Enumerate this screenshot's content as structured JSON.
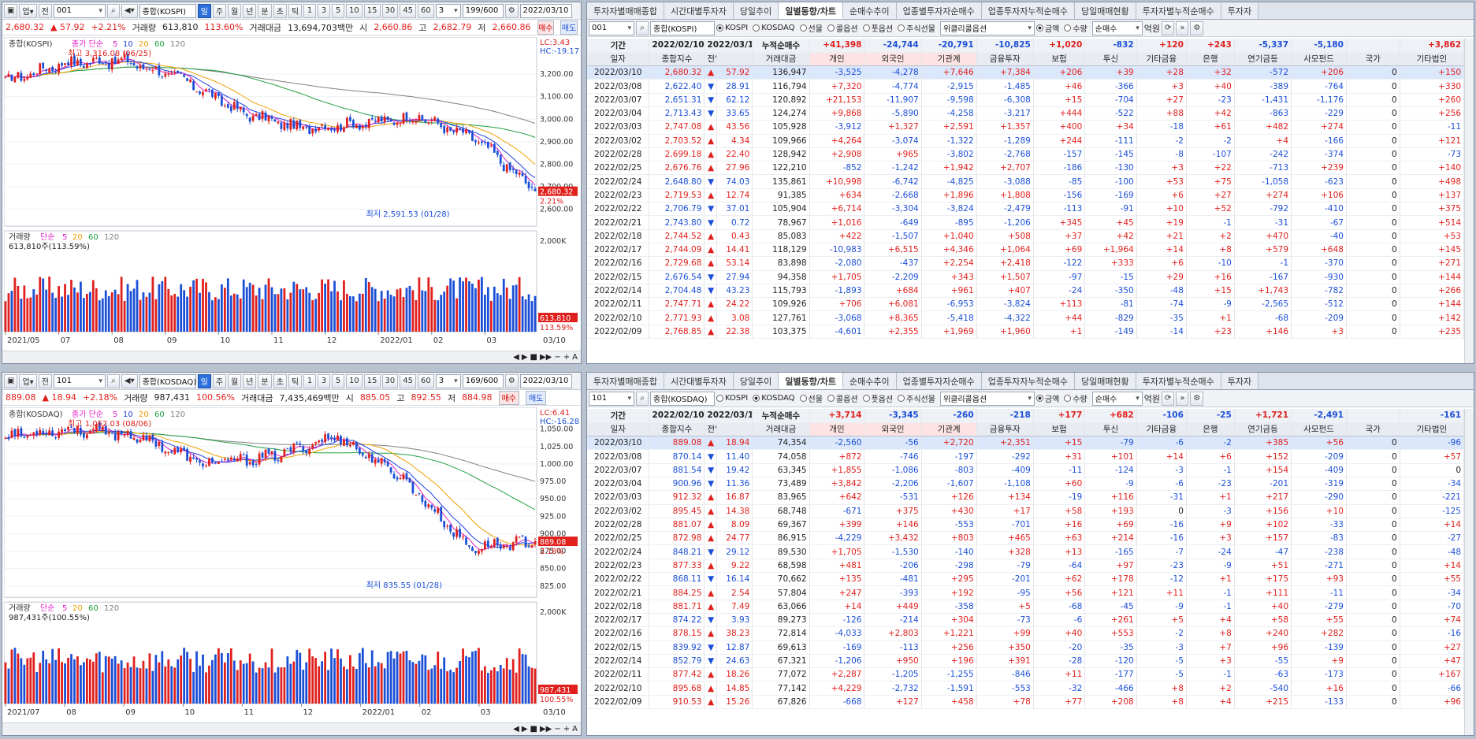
{
  "left_top": {
    "toolbar": {
      "code": "001",
      "name": "종합(KOSPI)",
      "periods": [
        "일",
        "주",
        "월",
        "년",
        "분",
        "초",
        "틱"
      ],
      "active_period": "일",
      "nums": [
        "1",
        "3",
        "5",
        "10",
        "15",
        "30",
        "45",
        "60"
      ],
      "num_sel": "3",
      "count": "199/600",
      "date": "2022/03/10"
    },
    "info": {
      "price": "2,680.32",
      "change": "57.92",
      "pct": "+2.21%",
      "vol_label": "거래량",
      "volume": "613,810",
      "vol_pct": "113.60%",
      "amt_label": "거래대금",
      "amount": "13,694,703백만",
      "open_label": "시",
      "open": "2,660.86",
      "high_label": "고",
      "high": "2,682.79",
      "low_label": "저",
      "low": "2,660.86",
      "buy": "매수",
      "sell": "매도"
    },
    "legend": {
      "name": "종합(KOSPI)",
      "ma_title": "종가 단순",
      "ma": [
        "5",
        "10",
        "20",
        "60",
        "120"
      ]
    },
    "lc": "LC:3.43",
    "hc": "HC:-19.17",
    "high_note": "최고 3,316.08 (06/25)",
    "low_note": "최저 2,591.53 (01/28)",
    "yaxis": [
      "3,200.00",
      "3,100.00",
      "3,000.00",
      "2,900.00",
      "2,800.00",
      "2,700.00",
      "2,600.00"
    ],
    "last_price": "2,680.32",
    "last_pct": "2.21%",
    "vol_legend": {
      "title": "거래량",
      "ma_title": "단순",
      "ma": [
        "5",
        "20",
        "60",
        "120"
      ],
      "value": "613,810주(113.59%)"
    },
    "vol_axis": "2,000K",
    "vol_last": "613,810",
    "vol_last_pct": "113.59%",
    "xaxis": [
      "2021/05",
      "07",
      "08",
      "09",
      "10",
      "11",
      "12",
      "2022/01",
      "02",
      "03"
    ],
    "xend": "03/10"
  },
  "left_bottom": {
    "toolbar": {
      "code": "101",
      "name": "종합(KOSDAQ)",
      "periods": [
        "일",
        "주",
        "월",
        "년",
        "분",
        "초",
        "틱"
      ],
      "active_period": "일",
      "nums": [
        "1",
        "3",
        "5",
        "10",
        "15",
        "30",
        "45",
        "60"
      ],
      "num_sel": "3",
      "count": "169/600",
      "date": "2022/03/10"
    },
    "info": {
      "price": "889.08",
      "change": "18.94",
      "pct": "+2.18%",
      "vol_label": "거래량",
      "volume": "987,431",
      "vol_pct": "100.56%",
      "amt_label": "거래대금",
      "amount": "7,435,469백만",
      "open_label": "시",
      "open": "885.05",
      "high_label": "고",
      "high": "892.55",
      "low_label": "저",
      "low": "884.98",
      "buy": "매수",
      "sell": "매도"
    },
    "legend": {
      "name": "종합(KOSDAQ)",
      "ma_title": "종가 단순",
      "ma": [
        "5",
        "10",
        "20",
        "60",
        "120"
      ]
    },
    "lc": "LC:6.41",
    "hc": "HC:-16.28",
    "high_note": "최고 1,062.03 (08/06)",
    "low_note": "최저 835.55 (01/28)",
    "yaxis": [
      "1,050.00",
      "1,025.00",
      "1,000.00",
      "975.00",
      "950.00",
      "925.00",
      "900.00",
      "875.00",
      "850.00",
      "825.00"
    ],
    "last_price": "889.08",
    "last_pct": "2.18%",
    "vol_legend": {
      "title": "거래량",
      "ma_title": "단순",
      "ma": [
        "5",
        "20",
        "60",
        "120"
      ],
      "value": "987,431주(100.55%)"
    },
    "vol_axis": "2,000K",
    "vol_last": "987,431",
    "vol_last_pct": "100.55%",
    "xaxis": [
      "2021/07",
      "08",
      "09",
      "10",
      "11",
      "12",
      "2022/01",
      "02",
      "03"
    ],
    "xend": "03/10"
  },
  "tabs": [
    "투자자별매매종합",
    "시간대별투자자",
    "당일추이",
    "일별동향/차트",
    "순매수추이",
    "업종별투자자순매수",
    "업종투자자누적순매수",
    "당일매매현황",
    "투자자별누적순매수",
    "투자자"
  ],
  "active_tab": "일별동향/차트",
  "right_top": {
    "code": "001",
    "name": "종합(KOSPI)",
    "date": "2022/03/10",
    "markets": [
      "KOSPI",
      "KOSDAQ",
      "선물",
      "콜옵션",
      "풋옵션",
      "주식선물"
    ],
    "market_sel": "KOSPI",
    "extra": "위클리콜옵션",
    "units": [
      "금액",
      "수량"
    ],
    "unit_sel": "금액",
    "net": "순매수",
    "won": "억원",
    "period_label": "기간",
    "from": "2022/02/10",
    "to": "2022/03/10",
    "cum_label": "누적순매수",
    "sums": [
      "+41,398",
      "-24,744",
      "-20,791",
      "-10,825",
      "+1,020",
      "-832",
      "+120",
      "+243",
      "-5,337",
      "-5,180",
      "",
      "+3,862"
    ],
    "headers": [
      "일자",
      "종합지수",
      "전일비",
      "",
      "거래대금",
      "개인",
      "외국인",
      "기관계",
      "금융투자",
      "보험",
      "투신",
      "기타금융",
      "은행",
      "연기금등",
      "사모펀드",
      "국가",
      "기타법인"
    ],
    "rows": [
      [
        "2022/03/10",
        "2,680.32",
        "▲",
        "57.92",
        "136,947",
        "-3,525",
        "-4,278",
        "+7,646",
        "+7,384",
        "+206",
        "+39",
        "+28",
        "+32",
        "-572",
        "+206",
        "0",
        "+150"
      ],
      [
        "2022/03/08",
        "2,622.40",
        "▼",
        "28.91",
        "116,794",
        "+7,320",
        "-4,774",
        "-2,915",
        "-1,485",
        "+46",
        "-366",
        "+3",
        "+40",
        "-389",
        "-764",
        "0",
        "+330"
      ],
      [
        "2022/03/07",
        "2,651.31",
        "▼",
        "62.12",
        "120,892",
        "+21,153",
        "-11,907",
        "-9,598",
        "-6,308",
        "+15",
        "-704",
        "+27",
        "-23",
        "-1,431",
        "-1,176",
        "0",
        "+260"
      ],
      [
        "2022/03/04",
        "2,713.43",
        "▼",
        "33.65",
        "124,274",
        "+9,868",
        "-5,890",
        "-4,258",
        "-3,217",
        "+444",
        "-522",
        "+88",
        "+42",
        "-863",
        "-229",
        "0",
        "+256"
      ],
      [
        "2022/03/03",
        "2,747.08",
        "▲",
        "43.56",
        "105,928",
        "-3,912",
        "+1,327",
        "+2,591",
        "+1,357",
        "+400",
        "+34",
        "-18",
        "+61",
        "+482",
        "+274",
        "0",
        "-11"
      ],
      [
        "2022/03/02",
        "2,703.52",
        "▲",
        "4.34",
        "109,966",
        "+4,264",
        "-3,074",
        "-1,322",
        "-1,289",
        "+244",
        "-111",
        "-2",
        "-2",
        "+4",
        "-166",
        "0",
        "+121"
      ],
      [
        "2022/02/28",
        "2,699.18",
        "▲",
        "22.40",
        "128,942",
        "+2,908",
        "+965",
        "-3,802",
        "-2,768",
        "-157",
        "-145",
        "-8",
        "-107",
        "-242",
        "-374",
        "0",
        "-73"
      ],
      [
        "2022/02/25",
        "2,676.76",
        "▲",
        "27.96",
        "122,210",
        "-852",
        "-1,242",
        "+1,942",
        "+2,707",
        "-186",
        "-130",
        "+3",
        "+22",
        "-713",
        "+239",
        "0",
        "+140"
      ],
      [
        "2022/02/24",
        "2,648.80",
        "▼",
        "74.03",
        "135,861",
        "+10,998",
        "-6,742",
        "-4,825",
        "-3,088",
        "-85",
        "-100",
        "+53",
        "+75",
        "-1,058",
        "-623",
        "0",
        "+498"
      ],
      [
        "2022/02/23",
        "2,719.53",
        "▲",
        "12.74",
        "91,385",
        "+634",
        "-2,668",
        "+1,896",
        "+1,808",
        "-156",
        "-169",
        "+6",
        "+27",
        "+274",
        "+106",
        "0",
        "+137"
      ],
      [
        "2022/02/22",
        "2,706.79",
        "▼",
        "37.01",
        "105,904",
        "+6,714",
        "-3,304",
        "-3,824",
        "-2,479",
        "-113",
        "-91",
        "+10",
        "+52",
        "-792",
        "-410",
        "0",
        "+375"
      ],
      [
        "2022/02/21",
        "2,743.80",
        "▼",
        "0.72",
        "78,967",
        "+1,016",
        "-649",
        "-895",
        "-1,206",
        "+345",
        "+45",
        "+19",
        "-1",
        "-31",
        "-67",
        "0",
        "+514"
      ],
      [
        "2022/02/18",
        "2,744.52",
        "▲",
        "0.43",
        "85,083",
        "+422",
        "-1,507",
        "+1,040",
        "+508",
        "+37",
        "+42",
        "+21",
        "+2",
        "+470",
        "-40",
        "0",
        "+53"
      ],
      [
        "2022/02/17",
        "2,744.09",
        "▲",
        "14.41",
        "118,129",
        "-10,983",
        "+6,515",
        "+4,346",
        "+1,064",
        "+69",
        "+1,964",
        "+14",
        "+8",
        "+579",
        "+648",
        "0",
        "+145"
      ],
      [
        "2022/02/16",
        "2,729.68",
        "▲",
        "53.14",
        "83,898",
        "-2,080",
        "-437",
        "+2,254",
        "+2,418",
        "-122",
        "+333",
        "+6",
        "-10",
        "-1",
        "-370",
        "0",
        "+271"
      ],
      [
        "2022/02/15",
        "2,676.54",
        "▼",
        "27.94",
        "94,358",
        "+1,705",
        "-2,209",
        "+343",
        "+1,507",
        "-97",
        "-15",
        "+29",
        "+16",
        "-167",
        "-930",
        "0",
        "+144"
      ],
      [
        "2022/02/14",
        "2,704.48",
        "▼",
        "43.23",
        "115,793",
        "-1,893",
        "+684",
        "+961",
        "+407",
        "-24",
        "-350",
        "-48",
        "+15",
        "+1,743",
        "-782",
        "0",
        "+266"
      ],
      [
        "2022/02/11",
        "2,747.71",
        "▲",
        "24.22",
        "109,926",
        "+706",
        "+6,081",
        "-6,953",
        "-3,824",
        "+113",
        "-81",
        "-74",
        "-9",
        "-2,565",
        "-512",
        "0",
        "+144"
      ],
      [
        "2022/02/10",
        "2,771.93",
        "▲",
        "3.08",
        "127,761",
        "-3,068",
        "+8,365",
        "-5,418",
        "-4,322",
        "+44",
        "-829",
        "-35",
        "+1",
        "-68",
        "-209",
        "0",
        "+142"
      ],
      [
        "2022/02/09",
        "2,768.85",
        "▲",
        "22.38",
        "103,375",
        "-4,601",
        "+2,355",
        "+1,969",
        "+1,960",
        "+1",
        "-149",
        "-14",
        "+23",
        "+146",
        "+3",
        "0",
        "+235"
      ]
    ]
  },
  "right_bottom": {
    "code": "101",
    "name": "종합(KOSDAQ)",
    "date": "2022/03/10",
    "markets": [
      "KOSPI",
      "KOSDAQ",
      "선물",
      "콜옵션",
      "풋옵션",
      "주식선물"
    ],
    "market_sel": "KOSDAQ",
    "extra": "위클리콜옵션",
    "units": [
      "금액",
      "수량"
    ],
    "unit_sel": "금액",
    "net": "순매수",
    "won": "억원",
    "period_label": "기간",
    "from": "2022/02/10",
    "to": "2022/03/10",
    "cum_label": "누적순매수",
    "sums": [
      "+3,714",
      "-3,345",
      "-260",
      "-218",
      "+177",
      "+682",
      "-106",
      "-25",
      "+1,721",
      "-2,491",
      "",
      "-161"
    ],
    "headers": [
      "일자",
      "종합지수",
      "전일비",
      "",
      "거래대금",
      "개인",
      "외국인",
      "기관계",
      "금융투자",
      "보험",
      "투신",
      "기타금융",
      "은행",
      "연기금등",
      "사모펀드",
      "국가",
      "기타법인"
    ],
    "rows": [
      [
        "2022/03/10",
        "889.08",
        "▲",
        "18.94",
        "74,354",
        "-2,560",
        "-56",
        "+2,720",
        "+2,351",
        "+15",
        "-79",
        "-6",
        "-2",
        "+385",
        "+56",
        "0",
        "-96"
      ],
      [
        "2022/03/08",
        "870.14",
        "▼",
        "11.40",
        "74,058",
        "+872",
        "-746",
        "-197",
        "-292",
        "+31",
        "+101",
        "+14",
        "+6",
        "+152",
        "-209",
        "0",
        "+57"
      ],
      [
        "2022/03/07",
        "881.54",
        "▼",
        "19.42",
        "63,345",
        "+1,855",
        "-1,086",
        "-803",
        "-409",
        "-11",
        "-124",
        "-3",
        "-1",
        "+154",
        "-409",
        "0",
        "0"
      ],
      [
        "2022/03/04",
        "900.96",
        "▼",
        "11.36",
        "73,489",
        "+3,842",
        "-2,206",
        "-1,607",
        "-1,108",
        "+60",
        "-9",
        "-6",
        "-23",
        "-201",
        "-319",
        "0",
        "-34"
      ],
      [
        "2022/03/03",
        "912.32",
        "▲",
        "16.87",
        "83,965",
        "+642",
        "-531",
        "+126",
        "+134",
        "-19",
        "+116",
        "-31",
        "+1",
        "+217",
        "-290",
        "0",
        "-221"
      ],
      [
        "2022/03/02",
        "895.45",
        "▲",
        "14.38",
        "68,748",
        "-671",
        "+375",
        "+430",
        "+17",
        "+58",
        "+193",
        "0",
        "-3",
        "+156",
        "+10",
        "0",
        "-125"
      ],
      [
        "2022/02/28",
        "881.07",
        "▲",
        "8.09",
        "69,367",
        "+399",
        "+146",
        "-553",
        "-701",
        "+16",
        "+69",
        "-16",
        "+9",
        "+102",
        "-33",
        "0",
        "+14"
      ],
      [
        "2022/02/25",
        "872.98",
        "▲",
        "24.77",
        "86,915",
        "-4,229",
        "+3,432",
        "+803",
        "+465",
        "+63",
        "+214",
        "-16",
        "+3",
        "+157",
        "-83",
        "0",
        "-27"
      ],
      [
        "2022/02/24",
        "848.21",
        "▼",
        "29.12",
        "89,530",
        "+1,705",
        "-1,530",
        "-140",
        "+328",
        "+13",
        "-165",
        "-7",
        "-24",
        "-47",
        "-238",
        "0",
        "-48"
      ],
      [
        "2022/02/23",
        "877.33",
        "▲",
        "9.22",
        "68,598",
        "+481",
        "-206",
        "-298",
        "-79",
        "-64",
        "+97",
        "-23",
        "-9",
        "+51",
        "-271",
        "0",
        "+14"
      ],
      [
        "2022/02/22",
        "868.11",
        "▼",
        "16.14",
        "70,662",
        "+135",
        "-481",
        "+295",
        "-201",
        "+62",
        "+178",
        "-12",
        "+1",
        "+175",
        "+93",
        "0",
        "+55"
      ],
      [
        "2022/02/21",
        "884.25",
        "▲",
        "2.54",
        "57,804",
        "+247",
        "-393",
        "+192",
        "-95",
        "+56",
        "+121",
        "+11",
        "-1",
        "+111",
        "-11",
        "0",
        "-34"
      ],
      [
        "2022/02/18",
        "881.71",
        "▲",
        "7.49",
        "63,066",
        "+14",
        "+449",
        "-358",
        "+5",
        "-68",
        "-45",
        "-9",
        "-1",
        "+40",
        "-279",
        "0",
        "-70"
      ],
      [
        "2022/02/17",
        "874.22",
        "▼",
        "3.93",
        "89,273",
        "-126",
        "-214",
        "+304",
        "-73",
        "-6",
        "+261",
        "+5",
        "+4",
        "+58",
        "+55",
        "0",
        "+74"
      ],
      [
        "2022/02/16",
        "878.15",
        "▲",
        "38.23",
        "72,814",
        "-4,033",
        "+2,803",
        "+1,221",
        "+99",
        "+40",
        "+553",
        "-2",
        "+8",
        "+240",
        "+282",
        "0",
        "-16"
      ],
      [
        "2022/02/15",
        "839.92",
        "▼",
        "12.87",
        "69,613",
        "-169",
        "-113",
        "+256",
        "+350",
        "-20",
        "-35",
        "-3",
        "+7",
        "+96",
        "-139",
        "0",
        "+27"
      ],
      [
        "2022/02/14",
        "852.79",
        "▼",
        "24.63",
        "67,321",
        "-1,206",
        "+950",
        "+196",
        "+391",
        "-28",
        "-120",
        "-5",
        "+3",
        "-55",
        "+9",
        "0",
        "+47"
      ],
      [
        "2022/02/11",
        "877.42",
        "▲",
        "18.26",
        "77,072",
        "+2,287",
        "-1,205",
        "-1,255",
        "-846",
        "+11",
        "-177",
        "-5",
        "-1",
        "-63",
        "-173",
        "0",
        "+167"
      ],
      [
        "2022/02/10",
        "895.68",
        "▲",
        "14.85",
        "77,142",
        "+4,229",
        "-2,732",
        "-1,591",
        "-553",
        "-32",
        "-466",
        "+8",
        "+2",
        "-540",
        "+16",
        "0",
        "-66"
      ],
      [
        "2022/02/09",
        "910.53",
        "▲",
        "15.26",
        "67,826",
        "-668",
        "+127",
        "+458",
        "+78",
        "+77",
        "+208",
        "+8",
        "+4",
        "+215",
        "-133",
        "0",
        "+96"
      ]
    ]
  },
  "chart_data": [
    {
      "type": "line",
      "title": "종합(KOSPI)",
      "note": "candlestick index chart with MA 5/10/20/60/120 and volume bars",
      "ylim": [
        2560,
        3330
      ],
      "x": [
        "2021/05",
        "07",
        "08",
        "09",
        "10",
        "11",
        "12",
        "2022/01",
        "02",
        "03/10"
      ],
      "close": [
        3170,
        3250,
        3260,
        3180,
        3030,
        2960,
        2980,
        3010,
        2910,
        2680
      ],
      "high_point": {
        "value": 3316.08,
        "date": "06/25"
      },
      "low_point": {
        "value": 2591.53,
        "date": "01/28"
      }
    },
    {
      "type": "line",
      "title": "종합(KOSDAQ)",
      "note": "candlestick index chart with MA 5/10/20/60/120 and volume bars",
      "ylim": [
        820,
        1070
      ],
      "x": [
        "2021/07",
        "08",
        "09",
        "10",
        "11",
        "12",
        "2022/01",
        "02",
        "03/10"
      ],
      "close": [
        1040,
        1050,
        1040,
        1000,
        1010,
        1040,
        980,
        880,
        889.08
      ],
      "high_point": {
        "value": 1062.03,
        "date": "08/06"
      },
      "low_point": {
        "value": 835.55,
        "date": "01/28"
      }
    }
  ],
  "colors": {
    "up": "#e0201d",
    "down": "#1b4fd6",
    "ma5": "#e020c8",
    "ma10": "#2040e0",
    "ma20": "#f0a000",
    "ma60": "#20a040",
    "ma120": "#808080"
  }
}
